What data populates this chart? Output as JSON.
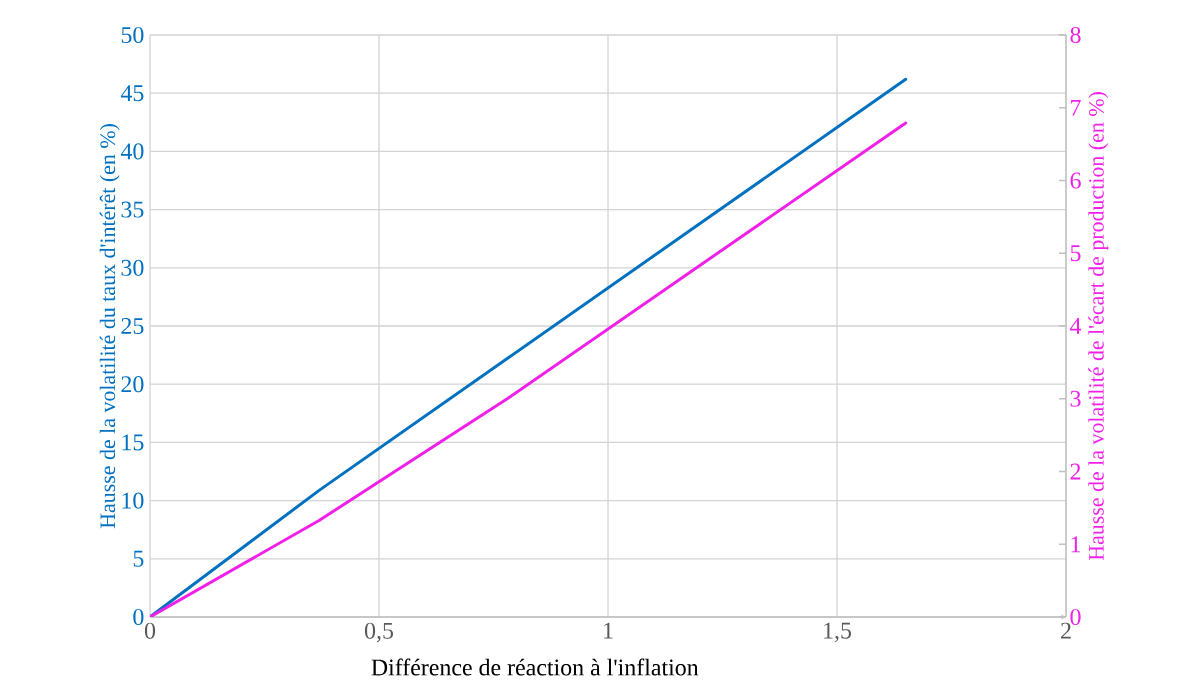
{
  "chart_data": {
    "type": "line",
    "xlabel": "Différence de réaction à l'inflation",
    "ylabel": "Hausse de la volatilité du taux d'intérêt (en %)",
    "y2label": "Hausse de la volatilité de l'écart de production (en %)",
    "series": [
      {
        "color": "#0070c0",
        "x": [
          0,
          0.37,
          0.78,
          1.65
        ],
        "values": [
          0,
          10.9,
          22.2,
          46.2
        ]
      },
      {
        "color": "#f020e8",
        "axis": "y2",
        "x": [
          0,
          0.37,
          0.78,
          1.65
        ],
        "values": [
          0,
          1.33,
          3.0,
          6.79
        ]
      }
    ],
    "xlim": [
      0,
      2
    ],
    "xticks": [
      0,
      {
        "value": 0.5,
        "label": "0,5"
      },
      1,
      {
        "value": 1.5,
        "label": "1,5"
      },
      2
    ],
    "ylim": [
      0,
      50
    ],
    "yticks": [
      0,
      5,
      10,
      15,
      20,
      25,
      30,
      35,
      40,
      45,
      50
    ],
    "y2lim": [
      0,
      8
    ],
    "y2ticks": [
      0,
      1,
      2,
      3,
      4,
      5,
      6,
      7,
      8
    ],
    "grid": true
  }
}
